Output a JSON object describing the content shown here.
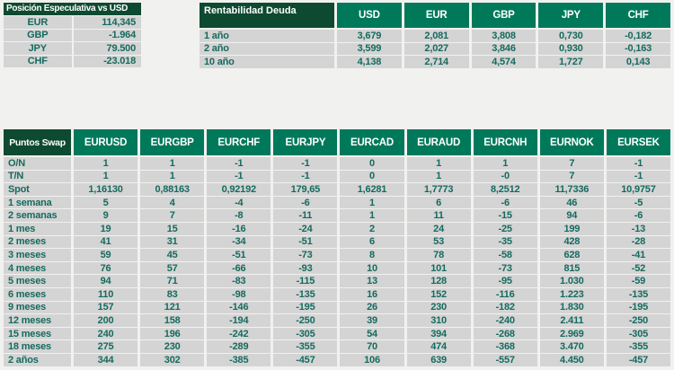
{
  "colors": {
    "title_dark_green": "#0e4a32",
    "column_header_green": "#00795b",
    "cell_background_gray": "#d4d4d4",
    "cell_text_teal": "#156a5e",
    "page_background": "#f1f1ef",
    "header_text": "#ffffff"
  },
  "posicion_especulativa": {
    "title": "Posición Especulativa vs USD",
    "rows": [
      {
        "label": "EUR",
        "value": "114,345"
      },
      {
        "label": "GBP",
        "value": "-1.964"
      },
      {
        "label": "JPY",
        "value": "79.500"
      },
      {
        "label": "CHF",
        "value": "-23.018"
      }
    ]
  },
  "rentabilidad_deuda": {
    "title": "Rentabilidad Deuda",
    "columns": [
      "USD",
      "EUR",
      "GBP",
      "JPY",
      "CHF"
    ],
    "rows": [
      {
        "label": "1 año",
        "values": [
          "3,679",
          "2,081",
          "3,808",
          "0,730",
          "-0,182"
        ]
      },
      {
        "label": "2 año",
        "values": [
          "3,599",
          "2,027",
          "3,846",
          "0,930",
          "-0,163"
        ]
      },
      {
        "label": "10 año",
        "values": [
          "4,138",
          "2,714",
          "4,574",
          "1,727",
          "0,143"
        ]
      }
    ]
  },
  "puntos_swap": {
    "title": "Puntos Swap",
    "columns": [
      "EURUSD",
      "EURGBP",
      "EURCHF",
      "EURJPY",
      "EURCAD",
      "EURAUD",
      "EURCNH",
      "EURNOK",
      "EURSEK"
    ],
    "rows": [
      {
        "label": "O/N",
        "values": [
          "1",
          "1",
          "-1",
          "-1",
          "0",
          "1",
          "1",
          "7",
          "-1"
        ]
      },
      {
        "label": "T/N",
        "values": [
          "1",
          "1",
          "-1",
          "-1",
          "0",
          "1",
          "-0",
          "7",
          "-1"
        ]
      },
      {
        "label": "Spot",
        "values": [
          "1,16130",
          "0,88163",
          "0,92192",
          "179,65",
          "1,6281",
          "1,7773",
          "8,2512",
          "11,7336",
          "10,9757"
        ]
      },
      {
        "label": "1 semana",
        "values": [
          "5",
          "4",
          "-4",
          "-6",
          "1",
          "6",
          "-6",
          "46",
          "-5"
        ]
      },
      {
        "label": "2 semanas",
        "values": [
          "9",
          "7",
          "-8",
          "-11",
          "1",
          "11",
          "-15",
          "94",
          "-6"
        ]
      },
      {
        "label": "1 mes",
        "values": [
          "19",
          "15",
          "-16",
          "-24",
          "2",
          "24",
          "-25",
          "199",
          "-13"
        ]
      },
      {
        "label": "2 meses",
        "values": [
          "41",
          "31",
          "-34",
          "-51",
          "6",
          "53",
          "-35",
          "428",
          "-28"
        ]
      },
      {
        "label": "3 meses",
        "values": [
          "59",
          "45",
          "-51",
          "-73",
          "8",
          "78",
          "-58",
          "628",
          "-41"
        ]
      },
      {
        "label": "4 meses",
        "values": [
          "76",
          "57",
          "-66",
          "-93",
          "10",
          "101",
          "-73",
          "815",
          "-52"
        ]
      },
      {
        "label": "5 meses",
        "values": [
          "94",
          "71",
          "-83",
          "-115",
          "13",
          "128",
          "-95",
          "1.030",
          "-59"
        ]
      },
      {
        "label": "6 meses",
        "values": [
          "110",
          "83",
          "-98",
          "-135",
          "16",
          "152",
          "-116",
          "1.223",
          "-135"
        ]
      },
      {
        "label": "9 meses",
        "values": [
          "157",
          "121",
          "-146",
          "-195",
          "26",
          "230",
          "-182",
          "1.830",
          "-195"
        ]
      },
      {
        "label": "12 meses",
        "values": [
          "200",
          "158",
          "-194",
          "-250",
          "39",
          "310",
          "-240",
          "2.411",
          "-250"
        ]
      },
      {
        "label": "15 meses",
        "values": [
          "240",
          "196",
          "-242",
          "-305",
          "54",
          "394",
          "-268",
          "2.969",
          "-305"
        ]
      },
      {
        "label": "18 meses",
        "values": [
          "275",
          "230",
          "-289",
          "-355",
          "70",
          "474",
          "-368",
          "3.470",
          "-355"
        ]
      },
      {
        "label": "2 años",
        "values": [
          "344",
          "302",
          "-385",
          "-457",
          "106",
          "639",
          "-557",
          "4.450",
          "-457"
        ]
      }
    ]
  }
}
